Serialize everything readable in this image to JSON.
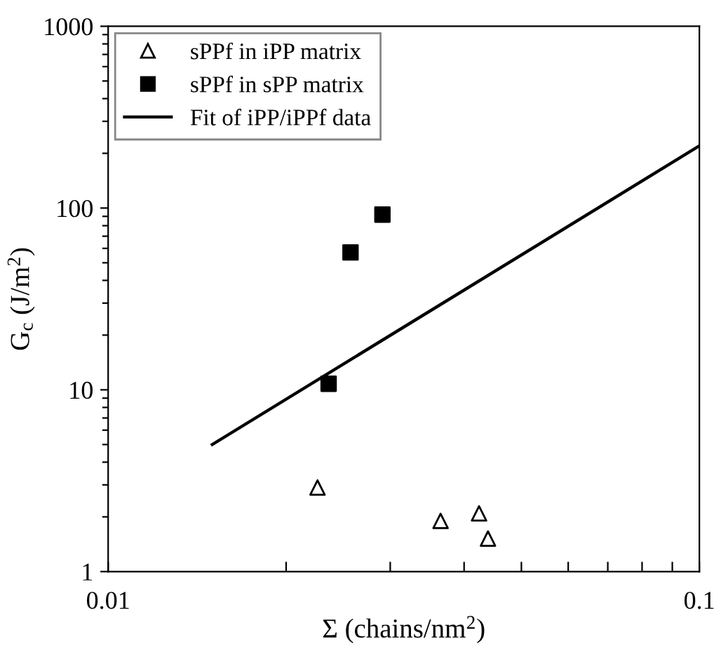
{
  "chart_data": {
    "type": "scatter",
    "xlabel": "Σ (chains/nm$^{2}$)",
    "ylabel": "G$_{c}$ (J/m$^{2}$)",
    "log": "xy",
    "grid": false,
    "legend": "top left",
    "xlim": [
      0.01,
      0.1
    ],
    "ylim": [
      1,
      1000
    ],
    "xticks": [
      0.01,
      {
        "value": 0.02,
        "label": null
      },
      {
        "value": 0.03,
        "label": null
      },
      {
        "value": 0.04,
        "label": null
      },
      {
        "value": 0.05,
        "label": null
      },
      {
        "value": 0.06,
        "label": null
      },
      {
        "value": 0.07,
        "label": null
      },
      {
        "value": 0.08,
        "label": null
      },
      {
        "value": 0.09,
        "label": null
      },
      0.1
    ],
    "yticks": [
      1,
      {
        "value": 2,
        "label": null
      },
      {
        "value": 3,
        "label": null
      },
      {
        "value": 4,
        "label": null
      },
      {
        "value": 5,
        "label": null
      },
      {
        "value": 6,
        "label": null
      },
      {
        "value": 7,
        "label": null
      },
      {
        "value": 8,
        "label": null
      },
      {
        "value": 9,
        "label": null
      },
      10,
      {
        "value": 20,
        "label": null
      },
      {
        "value": 30,
        "label": null
      },
      {
        "value": 40,
        "label": null
      },
      {
        "value": 50,
        "label": null
      },
      {
        "value": 60,
        "label": null
      },
      {
        "value": 70,
        "label": null
      },
      {
        "value": 80,
        "label": null
      },
      {
        "value": 90,
        "label": null
      },
      100,
      {
        "value": 200,
        "label": null
      },
      {
        "value": 300,
        "label": null
      },
      {
        "value": 400,
        "label": null
      },
      {
        "value": 500,
        "label": null
      },
      {
        "value": 600,
        "label": null
      },
      {
        "value": 700,
        "label": null
      },
      {
        "value": 800,
        "label": null
      },
      {
        "value": 900,
        "label": null
      },
      1000
    ],
    "series": [
      {
        "name": "sPPf in iPP matrix",
        "marker": "triangle",
        "color": "#000000",
        "x": [
          0.0226,
          0.0365,
          0.0424,
          0.0439
        ],
        "values": [
          2.9,
          1.9,
          2.09,
          1.52
        ]
      },
      {
        "name": "sPPf in sPP matrix",
        "marker": "square",
        "color": "#000000",
        "x": [
          0.0236,
          0.0257,
          0.0291
        ],
        "values": [
          10.8,
          57,
          92
        ]
      },
      {
        "name": "Fit of iPP/iPPf data",
        "type": "line",
        "marker": "none",
        "line_style": "solid",
        "color": "#000000",
        "x": [
          0.015,
          0.1
        ],
        "values": [
          5.0,
          220
        ]
      }
    ]
  }
}
